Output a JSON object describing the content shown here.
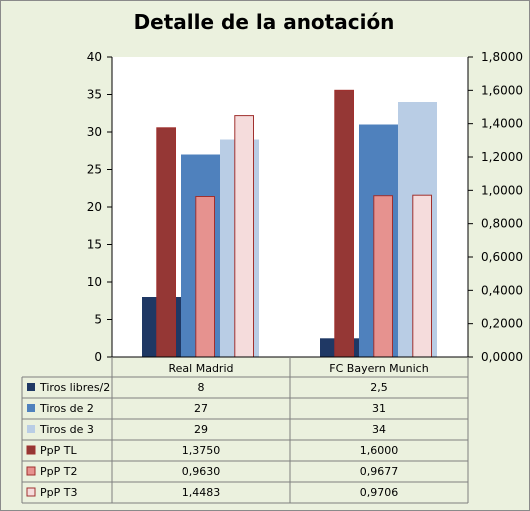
{
  "chart_data": {
    "type": "bar",
    "title": "Detalle de la anotación",
    "categories": [
      "Real Madrid",
      "FC Bayern Munich"
    ],
    "y_left": {
      "lim": [
        0,
        40
      ],
      "ticks": [
        "0",
        "5",
        "10",
        "15",
        "20",
        "25",
        "30",
        "35",
        "40"
      ]
    },
    "y_right": {
      "lim": [
        0,
        1.8
      ],
      "ticks": [
        "0,0000",
        "0,2000",
        "0,4000",
        "0,6000",
        "0,8000",
        "1,0000",
        "1,2000",
        "1,4000",
        "1,6000",
        "1,8000"
      ]
    },
    "series": [
      {
        "name": "Tiros libres/2",
        "axis": "left",
        "color": "#1f3864",
        "values": [
          8,
          2.5
        ],
        "labels": [
          "8",
          "2,5"
        ]
      },
      {
        "name": "PpP TL",
        "axis": "right",
        "color": "#953735",
        "values": [
          1.375,
          1.6
        ],
        "labels": [
          "1,3750",
          "1,6000"
        ]
      },
      {
        "name": "Tiros de 2",
        "axis": "left",
        "color": "#4f81bd",
        "values": [
          27,
          31
        ],
        "labels": [
          "27",
          "31"
        ]
      },
      {
        "name": "PpP T2",
        "axis": "right",
        "color": "#e6928f",
        "values": [
          0.963,
          0.9677
        ],
        "labels": [
          "0,9630",
          "0,9677"
        ]
      },
      {
        "name": "Tiros de 3",
        "axis": "left",
        "color": "#b9cde5",
        "values": [
          29,
          34
        ],
        "labels": [
          "29",
          "34"
        ]
      },
      {
        "name": "PpP T3",
        "axis": "right",
        "color": "#f5dcdc",
        "values": [
          1.4483,
          0.9706
        ],
        "labels": [
          "1,4483",
          "0,9706"
        ]
      }
    ],
    "table_order": [
      "Tiros libres/2",
      "Tiros de 2",
      "Tiros de 3",
      "PpP TL",
      "PpP T2",
      "PpP T3"
    ],
    "grid": false
  }
}
